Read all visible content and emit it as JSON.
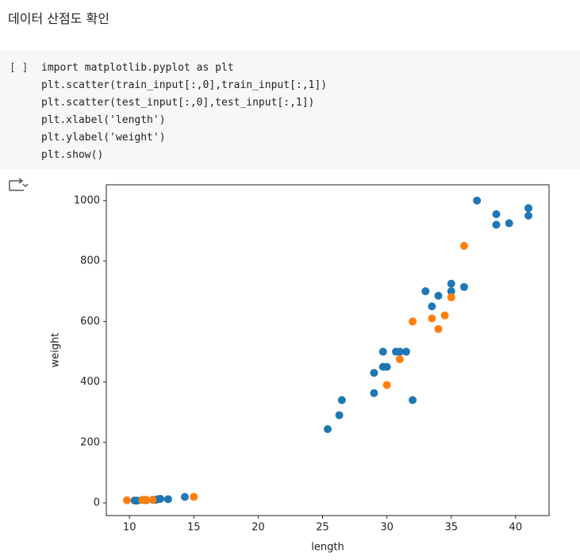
{
  "heading": "데이터 산점도 확인",
  "code": {
    "prompt": "[ ]",
    "lines": [
      "import matplotlib.pyplot as plt",
      "plt.scatter(train_input[:,0],train_input[:,1])",
      "plt.scatter(test_input[:,0],test_input[:,1])",
      "plt.xlabel('length')",
      "plt.ylabel('weight')",
      "plt.show()"
    ]
  },
  "chart_data": {
    "type": "scatter",
    "x_label": "length",
    "y_label": "weight",
    "xlim": [
      8.2,
      42.6
    ],
    "ylim": [
      -42,
      1052
    ],
    "xticks": [
      10,
      15,
      20,
      25,
      30,
      35,
      40
    ],
    "yticks": [
      0,
      200,
      400,
      600,
      800,
      1000
    ],
    "grid": false,
    "series": [
      {
        "color": "#1f77b4",
        "x": [
          10.4,
          10.6,
          11.0,
          11.2,
          11.3,
          11.8,
          12.0,
          12.2,
          12.4,
          13.0,
          14.3,
          25.4,
          26.3,
          26.5,
          29.0,
          29.0,
          29.7,
          29.7,
          30.0,
          30.7,
          31.0,
          31.5,
          32.0,
          33.0,
          33.5,
          34.0,
          35.0,
          35.0,
          36.0,
          37.0,
          38.5,
          38.5,
          39.5,
          41.0,
          41.0
        ],
        "values": [
          8,
          7.5,
          9.7,
          9.8,
          8.7,
          10,
          9.8,
          12.2,
          13.4,
          12.2,
          19.7,
          244,
          290,
          340,
          430,
          363,
          500,
          450,
          450,
          500,
          500,
          500,
          340,
          700,
          650,
          685,
          725,
          700,
          714,
          1000,
          955,
          920,
          925,
          975,
          950
        ]
      },
      {
        "color": "#ff7f0e",
        "x": [
          9.8,
          11.0,
          11.3,
          11.8,
          15.0,
          30.0,
          31.0,
          32.0,
          33.5,
          34.0,
          34.5,
          35.0,
          36.0
        ],
        "values": [
          8.7,
          9.9,
          9.9,
          10,
          19.9,
          390,
          475,
          600,
          610,
          575,
          620,
          680,
          850
        ]
      }
    ]
  }
}
